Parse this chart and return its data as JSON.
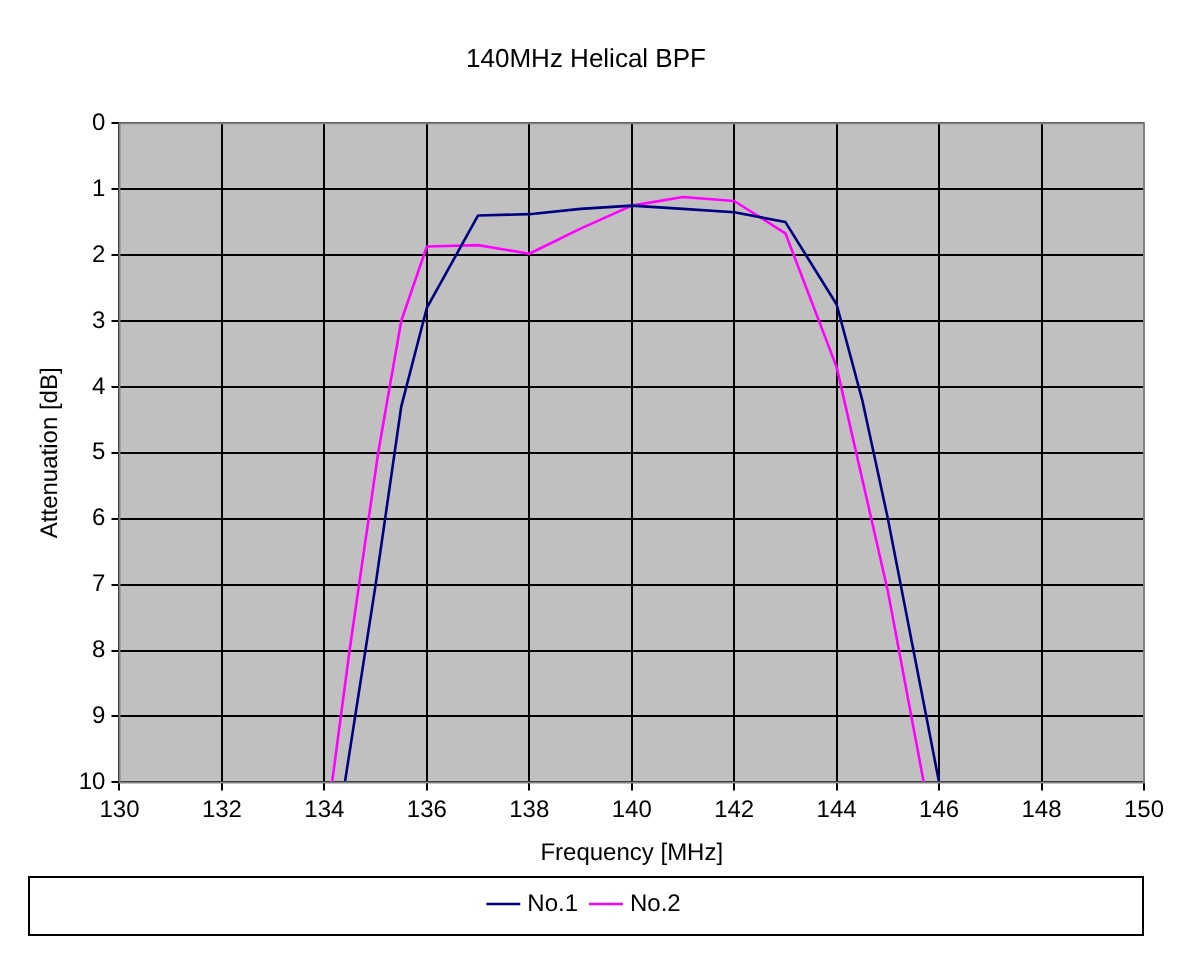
{
  "chart_data": {
    "type": "line",
    "title": "140MHz Helical BPF",
    "xlabel": "Frequency [MHz]",
    "ylabel": "Attenuation [dB]",
    "xlim": [
      130,
      150
    ],
    "xticks": [
      130,
      132,
      134,
      136,
      138,
      140,
      142,
      144,
      146,
      148,
      150
    ],
    "ylim": [
      10,
      0
    ],
    "yticks": [
      0,
      1,
      2,
      3,
      4,
      5,
      6,
      7,
      8,
      9,
      10
    ],
    "grid": true,
    "legend": "bottom",
    "marker": "none",
    "line_style": "solid",
    "series": [
      {
        "name": "No.1",
        "color": "#000080",
        "x": [
          134.4,
          135,
          135.5,
          136,
          137,
          138,
          139,
          140,
          141,
          142,
          143,
          144,
          144.5,
          145,
          145.5,
          146
        ],
        "values": [
          10,
          7.0,
          4.3,
          2.8,
          1.4,
          1.38,
          1.3,
          1.25,
          1.3,
          1.35,
          1.5,
          2.75,
          4.2,
          6.0,
          8.0,
          10
        ]
      },
      {
        "name": "No.2",
        "color": "#ff00ff",
        "x": [
          134.15,
          134.5,
          135.05,
          135.5,
          136,
          137,
          138,
          139,
          140,
          141,
          142,
          143,
          144,
          145,
          145.7
        ],
        "values": [
          10,
          7.95,
          5,
          3.0,
          1.87,
          1.85,
          1.98,
          1.6,
          1.25,
          1.12,
          1.18,
          1.67,
          3.7,
          7.1,
          10
        ]
      }
    ]
  }
}
